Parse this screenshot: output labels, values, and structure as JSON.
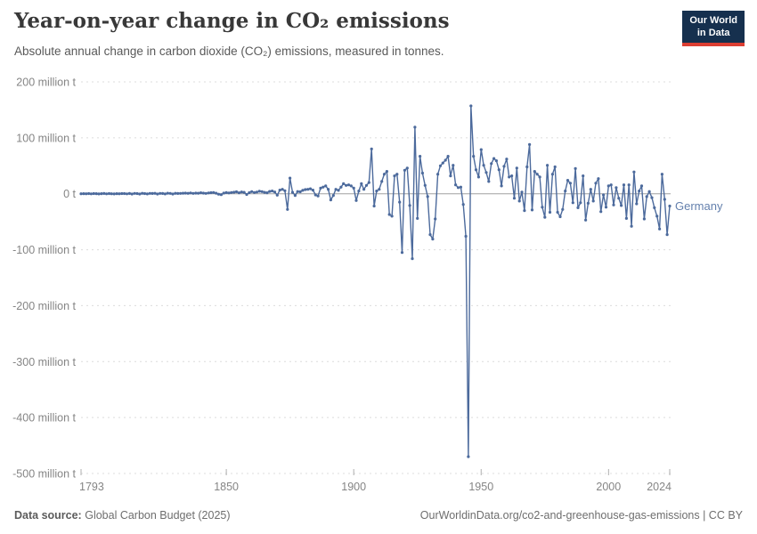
{
  "header": {
    "title": "Year-on-year change in CO₂ emissions",
    "subtitle": "Absolute annual change in carbon dioxide (CO₂) emissions, measured in tonnes.",
    "logo": {
      "line1": "Our World",
      "line2": "in Data",
      "bg_color": "#16304e",
      "accent_color": "#dc3e32"
    }
  },
  "footer": {
    "source_label": "Data source:",
    "source_value": "Global Carbon Budget (2025)",
    "link_text": "OurWorldinData.org/co2-and-greenhouse-gas-emissions | CC BY"
  },
  "chart_data": {
    "type": "line",
    "title": "Year-on-year change in CO₂ emissions",
    "subtitle": "Absolute annual change in carbon dioxide (CO₂) emissions, measured in tonnes.",
    "entity_label": "Germany",
    "line_color": "#4c6a9c",
    "label_color": "#6480ad",
    "grid": true,
    "marker": "circle",
    "xlabel": "",
    "ylabel": "",
    "y_unit": "million t",
    "xlim": [
      1793,
      2024
    ],
    "ylim": [
      -500,
      200
    ],
    "yticks": [
      {
        "value": 200,
        "label": "200 million t"
      },
      {
        "value": 100,
        "label": "100 million t"
      },
      {
        "value": 0,
        "label": "0 t"
      },
      {
        "value": -100,
        "label": "-100 million t"
      },
      {
        "value": -200,
        "label": "-200 million t"
      },
      {
        "value": -300,
        "label": "-300 million t"
      },
      {
        "value": -400,
        "label": "-400 million t"
      },
      {
        "value": -500,
        "label": "-500 million t"
      }
    ],
    "xticks": [
      {
        "year": 1793,
        "label": "1793"
      },
      {
        "year": 1850,
        "label": "1850"
      },
      {
        "year": 1900,
        "label": "1900"
      },
      {
        "year": 1950,
        "label": "1950"
      },
      {
        "year": 2000,
        "label": "2000"
      },
      {
        "year": 2024,
        "label": "2024"
      }
    ],
    "series": [
      {
        "name": "Germany",
        "unit": "million t",
        "start_year": 1793,
        "end_year": 2024,
        "values": [
          0.1,
          0.2,
          0.1,
          0.3,
          -0.2,
          0.4,
          0.2,
          -0.3,
          0.2,
          0.5,
          -0.2,
          0.4,
          0.1,
          -0.3,
          0.2,
          0.1,
          0.4,
          0.3,
          -0.2,
          0.5,
          -0.4,
          0.6,
          0.3,
          -0.5,
          0.8,
          0.4,
          -0.3,
          0.6,
          0.5,
          0.8,
          -0.4,
          0.7,
          0.5,
          -0.3,
          0.9,
          0.6,
          -0.4,
          0.8,
          0.5,
          0.7,
          0.9,
          1.2,
          0.8,
          1.5,
          0.6,
          1.1,
          0.9,
          1.8,
          1.2,
          0.7,
          1.5,
          2,
          2.2,
          1,
          -0.8,
          -1.5,
          1.2,
          2.1,
          1.5,
          2.3,
          2.8,
          3.5,
          1.8,
          3.2,
          2.5,
          -1.2,
          2,
          3.8,
          2.2,
          3,
          4.5,
          3.8,
          2.5,
          1.8,
          4.2,
          5,
          3.2,
          -2.5,
          6.5,
          8,
          5.5,
          -28,
          28,
          2.5,
          -3,
          4,
          3.5,
          6,
          7.5,
          8,
          9,
          6.5,
          -2,
          -4,
          10,
          12,
          14,
          8,
          -11,
          -3,
          8,
          6,
          12,
          18,
          15,
          16,
          14,
          10,
          -12,
          5,
          18,
          8,
          15,
          20,
          80,
          -22,
          5,
          8,
          22,
          35,
          40,
          -37,
          -40,
          32,
          35,
          -15,
          -105,
          42,
          46,
          -21,
          -116,
          119,
          -44,
          67,
          37,
          15,
          -5,
          -73,
          -81,
          -45,
          35,
          50,
          55,
          60,
          67,
          32,
          51,
          16,
          11,
          12,
          -19,
          -76,
          -470,
          157,
          67,
          43,
          30,
          79,
          51,
          38,
          22,
          54,
          63,
          59,
          43,
          14,
          49,
          62,
          30,
          32,
          -8,
          46,
          -13,
          3,
          -30,
          48,
          88,
          -29,
          40,
          35,
          30,
          -24,
          -42,
          51,
          -33,
          35,
          48,
          -33,
          -41,
          -28,
          5,
          24,
          19,
          -16,
          45,
          -25,
          -16,
          32,
          -47,
          -17,
          8,
          -13,
          19,
          27,
          -32,
          -2,
          -24,
          14,
          16,
          -20,
          11,
          -8,
          -21,
          16,
          -44,
          16,
          -58,
          39,
          -18,
          5,
          14,
          -45,
          -5,
          4,
          -7,
          -25,
          -40,
          -63,
          35,
          -10,
          -73,
          -22
        ]
      }
    ]
  }
}
